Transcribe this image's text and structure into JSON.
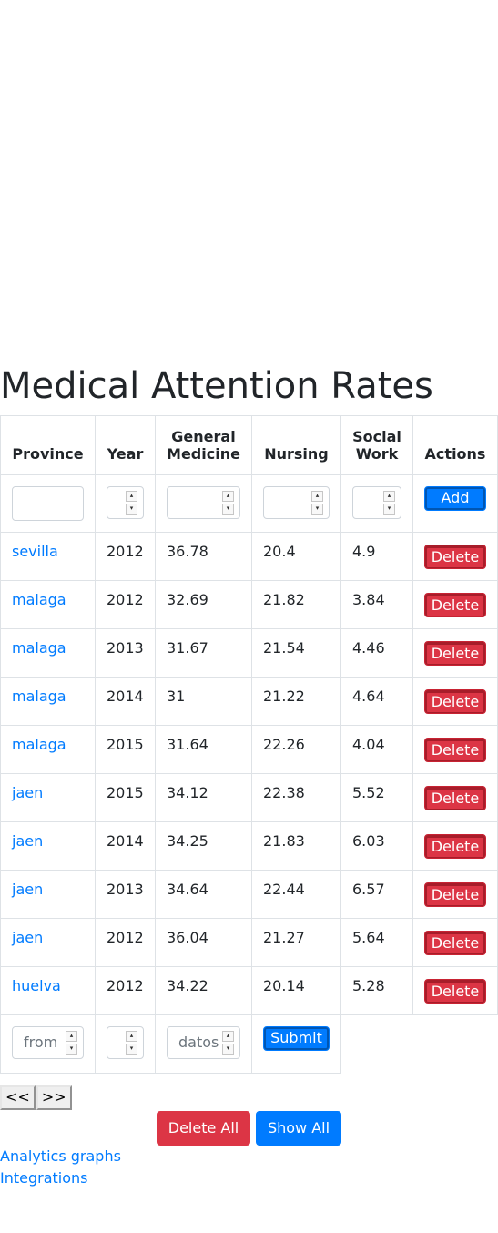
{
  "page": {
    "title": "Medical Attention Rates"
  },
  "table": {
    "headers": {
      "province": "Province",
      "year": "Year",
      "general_medicine": "General Medicine",
      "nursing": "Nursing",
      "social_work": "Social Work",
      "actions": "Actions"
    },
    "new_row": {
      "province": "",
      "year": "",
      "general_medicine": "",
      "nursing": "",
      "social_work": "",
      "add_label": "Add"
    },
    "rows": [
      {
        "province": "sevilla",
        "year": "2012",
        "general_medicine": "36.78",
        "nursing": "20.4",
        "social_work": "4.9"
      },
      {
        "province": "malaga",
        "year": "2012",
        "general_medicine": "32.69",
        "nursing": "21.82",
        "social_work": "3.84"
      },
      {
        "province": "malaga",
        "year": "2013",
        "general_medicine": "31.67",
        "nursing": "21.54",
        "social_work": "4.46"
      },
      {
        "province": "malaga",
        "year": "2014",
        "general_medicine": "31",
        "nursing": "21.22",
        "social_work": "4.64"
      },
      {
        "province": "malaga",
        "year": "2015",
        "general_medicine": "31.64",
        "nursing": "22.26",
        "social_work": "4.04"
      },
      {
        "province": "jaen",
        "year": "2015",
        "general_medicine": "34.12",
        "nursing": "22.38",
        "social_work": "5.52"
      },
      {
        "province": "jaen",
        "year": "2014",
        "general_medicine": "34.25",
        "nursing": "21.83",
        "social_work": "6.03"
      },
      {
        "province": "jaen",
        "year": "2013",
        "general_medicine": "34.64",
        "nursing": "22.44",
        "social_work": "6.57"
      },
      {
        "province": "jaen",
        "year": "2012",
        "general_medicine": "36.04",
        "nursing": "21.27",
        "social_work": "5.64"
      },
      {
        "province": "huelva",
        "year": "2012",
        "general_medicine": "34.22",
        "nursing": "20.14",
        "social_work": "5.28"
      }
    ],
    "delete_label": "Delete",
    "search": {
      "from_placeholder": "from",
      "year_value": "",
      "datos_placeholder": "datos",
      "submit_label": "Submit"
    }
  },
  "pagination": {
    "prev_label": "<<",
    "next_label": ">>"
  },
  "actions": {
    "delete_all_label": "Delete All",
    "show_all_label": "Show All"
  },
  "links": {
    "analytics_label": "Analytics graphs",
    "integrations_label": "Integrations"
  },
  "colors": {
    "primary": "#007bff",
    "danger": "#dc3545",
    "text": "#212529",
    "border": "#dee2e6"
  }
}
